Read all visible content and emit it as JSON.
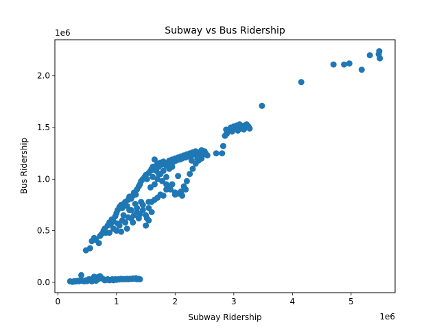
{
  "chart_data": {
    "type": "scatter",
    "title": "Subway vs Bus Ridership",
    "xlabel": "Subway Ridership",
    "ylabel": "Bus Ridership",
    "x_offset_label": "1e6",
    "y_offset_label": "1e6",
    "xlim": [
      -0.05,
      5.75
    ],
    "ylim": [
      -0.1,
      2.35
    ],
    "x_ticks": [
      0,
      1,
      2,
      3,
      4,
      5
    ],
    "x_tick_labels": [
      "0",
      "1",
      "2",
      "3",
      "4",
      "5"
    ],
    "y_ticks": [
      0.0,
      0.5,
      1.0,
      1.5,
      2.0
    ],
    "y_tick_labels": [
      "0.0",
      "0.5",
      "1.0",
      "1.5",
      "2.0"
    ],
    "grid": false,
    "legend": "none",
    "marker_color": "#1f77b4",
    "points": [
      [
        0.21,
        0.01
      ],
      [
        0.25,
        0.005
      ],
      [
        0.28,
        0.012
      ],
      [
        0.3,
        0.008
      ],
      [
        0.33,
        0.015
      ],
      [
        0.36,
        0.01
      ],
      [
        0.38,
        0.02
      ],
      [
        0.4,
        0.07
      ],
      [
        0.42,
        0.015
      ],
      [
        0.45,
        0.01
      ],
      [
        0.48,
        0.02
      ],
      [
        0.5,
        0.012
      ],
      [
        0.53,
        0.03
      ],
      [
        0.55,
        0.02
      ],
      [
        0.58,
        0.01
      ],
      [
        0.6,
        0.04
      ],
      [
        0.63,
        0.025
      ],
      [
        0.65,
        0.015
      ],
      [
        0.68,
        0.05
      ],
      [
        0.7,
        0.035
      ],
      [
        0.72,
        0.06
      ],
      [
        0.75,
        0.04
      ],
      [
        0.78,
        0.03
      ],
      [
        0.8,
        0.02
      ],
      [
        0.83,
        0.025
      ],
      [
        0.85,
        0.03
      ],
      [
        0.88,
        0.02
      ],
      [
        0.9,
        0.025
      ],
      [
        0.93,
        0.03
      ],
      [
        0.95,
        0.02
      ],
      [
        0.98,
        0.03
      ],
      [
        1.0,
        0.025
      ],
      [
        1.03,
        0.03
      ],
      [
        1.05,
        0.028
      ],
      [
        1.08,
        0.035
      ],
      [
        1.1,
        0.03
      ],
      [
        1.13,
        0.032
      ],
      [
        1.15,
        0.03
      ],
      [
        1.18,
        0.035
      ],
      [
        1.2,
        0.03
      ],
      [
        1.23,
        0.035
      ],
      [
        1.25,
        0.032
      ],
      [
        1.28,
        0.038
      ],
      [
        1.3,
        0.035
      ],
      [
        1.33,
        0.04
      ],
      [
        1.35,
        0.03
      ],
      [
        1.38,
        0.035
      ],
      [
        1.4,
        0.03
      ],
      [
        0.62,
        0.055
      ],
      [
        0.74,
        0.045
      ],
      [
        0.48,
        0.31
      ],
      [
        0.55,
        0.33
      ],
      [
        0.58,
        0.4
      ],
      [
        0.62,
        0.43
      ],
      [
        0.65,
        0.41
      ],
      [
        0.7,
        0.38
      ],
      [
        0.72,
        0.45
      ],
      [
        0.75,
        0.47
      ],
      [
        0.78,
        0.5
      ],
      [
        0.8,
        0.52
      ],
      [
        0.82,
        0.48
      ],
      [
        0.85,
        0.55
      ],
      [
        0.88,
        0.58
      ],
      [
        0.9,
        0.56
      ],
      [
        0.92,
        0.61
      ],
      [
        0.95,
        0.59
      ],
      [
        0.98,
        0.64
      ],
      [
        1.0,
        0.67
      ],
      [
        1.02,
        0.7
      ],
      [
        1.05,
        0.73
      ],
      [
        1.08,
        0.75
      ],
      [
        1.1,
        0.72
      ],
      [
        1.12,
        0.76
      ],
      [
        1.15,
        0.78
      ],
      [
        1.18,
        0.74
      ],
      [
        1.2,
        0.8
      ],
      [
        1.22,
        0.83
      ],
      [
        1.25,
        0.81
      ],
      [
        1.28,
        0.84
      ],
      [
        1.3,
        0.87
      ],
      [
        1.33,
        0.85
      ],
      [
        1.35,
        0.9
      ],
      [
        1.38,
        0.93
      ],
      [
        1.4,
        0.95
      ],
      [
        1.42,
        0.98
      ],
      [
        1.45,
        1.0
      ],
      [
        1.48,
        1.02
      ],
      [
        1.5,
        1.04
      ],
      [
        1.52,
        1.0
      ],
      [
        1.55,
        1.06
      ],
      [
        1.58,
        1.08
      ],
      [
        1.6,
        1.1
      ],
      [
        1.62,
        1.12
      ],
      [
        1.65,
        1.09
      ],
      [
        1.68,
        1.13
      ],
      [
        1.7,
        1.15
      ],
      [
        1.72,
        1.12
      ],
      [
        1.75,
        1.16
      ],
      [
        1.78,
        1.14
      ],
      [
        1.8,
        1.17
      ],
      [
        1.82,
        1.15
      ],
      [
        1.85,
        1.13
      ],
      [
        1.88,
        1.16
      ],
      [
        1.9,
        1.18
      ],
      [
        1.92,
        1.15
      ],
      [
        1.95,
        1.19
      ],
      [
        1.98,
        1.17
      ],
      [
        2.0,
        1.2
      ],
      [
        2.02,
        1.18
      ],
      [
        2.05,
        1.21
      ],
      [
        2.08,
        1.19
      ],
      [
        2.1,
        1.22
      ],
      [
        2.12,
        1.2
      ],
      [
        2.15,
        1.23
      ],
      [
        2.18,
        1.21
      ],
      [
        2.2,
        1.24
      ],
      [
        2.22,
        1.22
      ],
      [
        2.25,
        1.25
      ],
      [
        2.28,
        1.23
      ],
      [
        2.3,
        1.26
      ],
      [
        2.32,
        1.24
      ],
      [
        2.35,
        1.27
      ],
      [
        2.38,
        1.25
      ],
      [
        2.4,
        1.22
      ],
      [
        2.42,
        1.26
      ],
      [
        2.45,
        1.28
      ],
      [
        2.48,
        1.24
      ],
      [
        2.5,
        1.27
      ],
      [
        2.52,
        1.25
      ],
      [
        2.55,
        1.23
      ],
      [
        1.0,
        0.5
      ],
      [
        1.05,
        0.55
      ],
      [
        1.1,
        0.6
      ],
      [
        1.15,
        0.58
      ],
      [
        1.2,
        0.63
      ],
      [
        1.25,
        0.62
      ],
      [
        1.3,
        0.65
      ],
      [
        1.35,
        0.68
      ],
      [
        1.4,
        0.66
      ],
      [
        1.45,
        0.7
      ],
      [
        1.5,
        0.65
      ],
      [
        1.55,
        0.72
      ],
      [
        1.6,
        0.78
      ],
      [
        1.65,
        0.8
      ],
      [
        1.7,
        0.82
      ],
      [
        1.75,
        0.85
      ],
      [
        1.8,
        0.84
      ],
      [
        1.85,
        0.9
      ],
      [
        1.9,
        0.92
      ],
      [
        1.95,
        0.95
      ],
      [
        2.0,
        0.87
      ],
      [
        2.05,
        0.86
      ],
      [
        2.1,
        0.88
      ],
      [
        2.15,
        0.93
      ],
      [
        2.2,
        0.98
      ],
      [
        2.25,
        1.05
      ],
      [
        2.3,
        1.1
      ],
      [
        2.35,
        1.15
      ],
      [
        2.4,
        1.18
      ],
      [
        2.45,
        1.2
      ],
      [
        1.25,
        0.7
      ],
      [
        1.35,
        0.72
      ],
      [
        1.45,
        0.75
      ],
      [
        1.55,
        0.78
      ],
      [
        1.65,
        0.95
      ],
      [
        1.7,
        1.0
      ],
      [
        1.75,
        1.05
      ],
      [
        1.8,
        1.08
      ],
      [
        1.85,
        1.02
      ],
      [
        1.9,
        1.1
      ],
      [
        1.95,
        1.12
      ],
      [
        1.6,
        0.68
      ],
      [
        1.52,
        0.62
      ],
      [
        1.42,
        0.78
      ],
      [
        1.32,
        0.76
      ],
      [
        1.22,
        0.7
      ],
      [
        1.12,
        0.65
      ],
      [
        1.02,
        0.57
      ],
      [
        0.95,
        0.52
      ],
      [
        0.88,
        0.48
      ],
      [
        1.65,
        1.19
      ],
      [
        1.72,
        1.05
      ],
      [
        1.78,
        0.98
      ],
      [
        1.85,
        0.95
      ],
      [
        1.92,
        0.9
      ],
      [
        2.05,
        1.03
      ],
      [
        2.0,
        0.85
      ],
      [
        2.12,
        0.84
      ],
      [
        2.18,
        0.9
      ],
      [
        1.55,
        0.6
      ],
      [
        1.5,
        0.55
      ],
      [
        1.38,
        0.62
      ],
      [
        1.28,
        0.58
      ],
      [
        1.18,
        0.52
      ],
      [
        1.08,
        0.49
      ],
      [
        1.58,
        0.92
      ],
      [
        1.62,
        1.02
      ],
      [
        1.68,
        1.08
      ],
      [
        2.28,
        1.18
      ],
      [
        2.38,
        1.2
      ],
      [
        2.7,
        1.25
      ],
      [
        2.8,
        1.25
      ],
      [
        2.82,
        1.32
      ],
      [
        2.85,
        1.42
      ],
      [
        2.88,
        1.44
      ],
      [
        2.9,
        1.46
      ],
      [
        2.92,
        1.48
      ],
      [
        2.95,
        1.5
      ],
      [
        2.98,
        1.48
      ],
      [
        3.0,
        1.51
      ],
      [
        3.02,
        1.49
      ],
      [
        3.05,
        1.52
      ],
      [
        3.08,
        1.5
      ],
      [
        3.1,
        1.53
      ],
      [
        3.12,
        1.49
      ],
      [
        3.15,
        1.51
      ],
      [
        3.18,
        1.52
      ],
      [
        3.2,
        1.5
      ],
      [
        3.22,
        1.53
      ],
      [
        3.25,
        1.51
      ],
      [
        2.87,
        1.48
      ],
      [
        2.97,
        1.46
      ],
      [
        3.07,
        1.47
      ],
      [
        3.17,
        1.48
      ],
      [
        3.27,
        1.49
      ],
      [
        3.48,
        1.71
      ],
      [
        4.15,
        1.94
      ],
      [
        4.7,
        2.11
      ],
      [
        4.88,
        2.11
      ],
      [
        4.97,
        2.12
      ],
      [
        5.18,
        2.06
      ],
      [
        5.32,
        2.2
      ],
      [
        5.47,
        2.21
      ],
      [
        5.48,
        2.24
      ],
      [
        5.49,
        2.17
      ]
    ]
  }
}
